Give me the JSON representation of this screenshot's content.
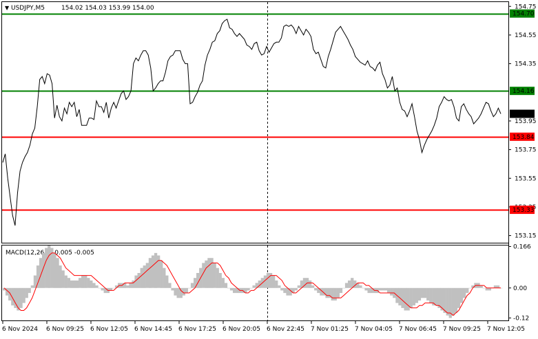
{
  "header": {
    "symbol_text": "USDJPY,M5",
    "ohlc_text": "154.02 154.03 153.99 154.00"
  },
  "macd_label": "MACD(12,26,9) 0.005 -0.005",
  "colors": {
    "price_line": "#000000",
    "macd_hist": "#c0c0c0",
    "signal_line": "#ff0000",
    "green_level": "#008000",
    "red_level": "#ff0000",
    "current_price_bg": "#000000",
    "grid_dotted": "#c8c8c8"
  },
  "chart_data": [
    {
      "type": "line",
      "title": "",
      "series": [
        {
          "values": [
            153.66,
            153.72,
            153.55,
            153.42,
            153.29,
            153.22,
            153.45,
            153.6,
            153.66,
            153.7,
            153.73,
            153.78,
            153.86,
            153.9,
            154.05,
            154.24,
            154.26,
            154.21,
            154.28,
            154.27,
            154.21,
            153.97,
            154.06,
            153.98,
            153.95,
            154.04,
            154.0,
            154.08,
            154.05,
            154.08,
            153.98,
            154.03,
            153.92,
            153.92,
            153.92,
            153.97,
            153.97,
            153.96,
            154.09,
            154.05,
            154.05,
            154.01,
            154.08,
            153.97,
            154.04,
            154.08,
            154.04,
            154.09,
            154.14,
            154.16,
            154.1,
            154.12,
            154.16,
            154.35,
            154.39,
            154.37,
            154.41,
            154.44,
            154.44,
            154.41,
            154.32,
            154.16,
            154.18,
            154.21,
            154.23,
            154.23,
            154.29,
            154.37,
            154.4,
            154.41,
            154.44,
            154.44,
            154.44,
            154.38,
            154.35,
            154.35,
            154.07,
            154.08,
            154.12,
            154.15,
            154.2,
            154.23,
            154.34,
            154.41,
            154.45,
            154.5,
            154.51,
            154.56,
            154.58,
            154.63,
            154.65,
            154.66,
            154.6,
            154.59,
            154.56,
            154.54,
            154.56,
            154.54,
            154.52,
            154.48,
            154.47,
            154.45,
            154.49,
            154.5,
            154.44,
            154.41,
            154.42,
            154.47,
            154.43,
            154.46,
            154.49,
            154.5,
            154.5,
            154.53,
            154.61,
            154.62,
            154.61,
            154.62,
            154.6,
            154.56,
            154.61,
            154.58,
            154.55,
            154.59,
            154.57,
            154.54,
            154.45,
            154.42,
            154.43,
            154.38,
            154.33,
            154.32,
            154.4,
            154.45,
            154.51,
            154.57,
            154.59,
            154.61,
            154.58,
            154.55,
            154.52,
            154.48,
            154.45,
            154.4,
            154.38,
            154.36,
            154.35,
            154.34,
            154.37,
            154.33,
            154.32,
            154.3,
            154.34,
            154.36,
            154.28,
            154.24,
            154.18,
            154.2,
            154.26,
            154.16,
            154.18,
            154.08,
            154.03,
            154.02,
            153.98,
            154.02,
            154.07,
            153.98,
            153.88,
            153.82,
            153.73,
            153.78,
            153.82,
            153.85,
            153.88,
            153.92,
            153.97,
            154.05,
            154.08,
            154.12,
            154.1,
            154.09,
            154.1,
            154.05,
            153.97,
            153.95,
            154.05,
            154.07,
            154.03,
            154.0,
            153.98,
            153.93,
            153.95,
            153.97,
            154.0,
            154.04,
            154.08,
            154.07,
            154.02,
            153.98,
            154.0,
            154.04,
            154.0
          ]
        }
      ],
      "ylim": [
        153.1,
        154.78
      ],
      "y_ticks": [
        "154.75",
        "154.55",
        "154.35",
        "153.95",
        "153.75",
        "153.55",
        "153.35",
        "153.15"
      ],
      "x_ticks": [
        "6 Nov 2024",
        "6 Nov 09:25",
        "6 Nov 12:05",
        "6 Nov 14:45",
        "6 Nov 17:25",
        "6 Nov 20:05",
        "6 Nov 22:45",
        "7 Nov 01:25",
        "7 Nov 04:05",
        "7 Nov 06:45",
        "7 Nov 09:25",
        "7 Nov 12:05"
      ],
      "levels": [
        {
          "value": 154.7,
          "label": "154.70",
          "color": "#008000"
        },
        {
          "value": 154.16,
          "label": "154.16",
          "color": "#008000"
        },
        {
          "value": 153.84,
          "label": "153.84",
          "color": "#ff0000"
        },
        {
          "value": 153.33,
          "label": "153.33",
          "color": "#ff0000"
        }
      ],
      "current_price": {
        "value": 154.0,
        "label": "154.00"
      },
      "vertical_marker": "6 Nov 22:45",
      "grid": false
    },
    {
      "type": "bar",
      "title": "MACD(12,26,9)",
      "ylim": [
        -0.13,
        0.17
      ],
      "y_ticks": [
        "0.166",
        "0.00",
        "-0.12"
      ],
      "histogram": [
        -0.01,
        -0.03,
        -0.05,
        -0.07,
        -0.08,
        -0.09,
        -0.08,
        -0.06,
        -0.04,
        -0.02,
        0.01,
        0.05,
        0.09,
        0.12,
        0.14,
        0.16,
        0.17,
        0.16,
        0.14,
        0.12,
        0.09,
        0.07,
        0.05,
        0.04,
        0.03,
        0.03,
        0.03,
        0.04,
        0.05,
        0.05,
        0.04,
        0.03,
        0.02,
        0.01,
        0.0,
        -0.01,
        -0.02,
        -0.02,
        -0.01,
        0.0,
        0.01,
        0.02,
        0.02,
        0.02,
        0.01,
        0.02,
        0.03,
        0.05,
        0.06,
        0.08,
        0.09,
        0.1,
        0.12,
        0.13,
        0.14,
        0.13,
        0.11,
        0.08,
        0.05,
        0.02,
        -0.01,
        -0.03,
        -0.04,
        -0.04,
        -0.03,
        -0.02,
        0.0,
        0.02,
        0.04,
        0.06,
        0.08,
        0.1,
        0.11,
        0.12,
        0.12,
        0.1,
        0.08,
        0.06,
        0.04,
        0.02,
        0.0,
        -0.01,
        -0.02,
        -0.02,
        -0.02,
        -0.02,
        -0.02,
        -0.01,
        0.0,
        0.01,
        0.02,
        0.03,
        0.04,
        0.05,
        0.06,
        0.06,
        0.05,
        0.03,
        0.01,
        -0.01,
        -0.02,
        -0.03,
        -0.03,
        -0.02,
        -0.01,
        0.01,
        0.03,
        0.04,
        0.04,
        0.03,
        0.01,
        -0.01,
        -0.02,
        -0.03,
        -0.03,
        -0.04,
        -0.04,
        -0.05,
        -0.05,
        -0.04,
        -0.02,
        0.0,
        0.02,
        0.03,
        0.04,
        0.03,
        0.02,
        0.01,
        0.0,
        -0.01,
        -0.02,
        -0.02,
        -0.02,
        -0.02,
        -0.01,
        -0.01,
        -0.01,
        -0.02,
        -0.03,
        -0.04,
        -0.06,
        -0.07,
        -0.08,
        -0.09,
        -0.09,
        -0.08,
        -0.07,
        -0.06,
        -0.05,
        -0.04,
        -0.04,
        -0.05,
        -0.06,
        -0.07,
        -0.07,
        -0.08,
        -0.09,
        -0.1,
        -0.11,
        -0.12,
        -0.11,
        -0.1,
        -0.08,
        -0.06,
        -0.04,
        -0.02,
        0.0,
        0.01,
        0.02,
        0.02,
        0.01,
        0.0,
        -0.01,
        -0.01,
        0.0,
        0.01,
        0.01,
        0.0
      ],
      "signal": [
        -0.0,
        -0.01,
        -0.02,
        -0.04,
        -0.06,
        -0.08,
        -0.09,
        -0.09,
        -0.08,
        -0.06,
        -0.04,
        -0.01,
        0.02,
        0.05,
        0.08,
        0.11,
        0.13,
        0.14,
        0.14,
        0.13,
        0.12,
        0.1,
        0.08,
        0.07,
        0.06,
        0.05,
        0.05,
        0.05,
        0.05,
        0.05,
        0.05,
        0.05,
        0.04,
        0.03,
        0.02,
        0.01,
        0.0,
        -0.01,
        -0.01,
        -0.01,
        0.0,
        0.01,
        0.01,
        0.02,
        0.02,
        0.02,
        0.02,
        0.03,
        0.04,
        0.05,
        0.06,
        0.07,
        0.08,
        0.09,
        0.1,
        0.11,
        0.11,
        0.1,
        0.09,
        0.07,
        0.05,
        0.03,
        0.01,
        -0.01,
        -0.02,
        -0.02,
        -0.02,
        -0.01,
        0.0,
        0.02,
        0.04,
        0.06,
        0.08,
        0.09,
        0.1,
        0.1,
        0.1,
        0.09,
        0.07,
        0.05,
        0.04,
        0.02,
        0.01,
        0.0,
        -0.01,
        -0.01,
        -0.02,
        -0.02,
        -0.01,
        -0.01,
        0.0,
        0.01,
        0.02,
        0.03,
        0.04,
        0.05,
        0.05,
        0.05,
        0.04,
        0.03,
        0.01,
        0.0,
        -0.01,
        -0.02,
        -0.02,
        -0.01,
        0.0,
        0.01,
        0.02,
        0.02,
        0.02,
        0.01,
        0.0,
        -0.01,
        -0.02,
        -0.03,
        -0.03,
        -0.04,
        -0.04,
        -0.04,
        -0.04,
        -0.03,
        -0.02,
        -0.01,
        0.0,
        0.01,
        0.02,
        0.02,
        0.02,
        0.01,
        0.01,
        0.0,
        -0.01,
        -0.01,
        -0.02,
        -0.02,
        -0.02,
        -0.02,
        -0.02,
        -0.02,
        -0.03,
        -0.04,
        -0.05,
        -0.06,
        -0.07,
        -0.08,
        -0.08,
        -0.08,
        -0.07,
        -0.07,
        -0.06,
        -0.06,
        -0.06,
        -0.06,
        -0.07,
        -0.07,
        -0.08,
        -0.09,
        -0.1,
        -0.1,
        -0.11,
        -0.1,
        -0.09,
        -0.07,
        -0.05,
        -0.03,
        -0.02,
        -0.0,
        0.01,
        0.01,
        0.01,
        0.01,
        0.0,
        0.0,
        -0.0,
        0.0,
        0.0,
        0.0
      ]
    }
  ]
}
